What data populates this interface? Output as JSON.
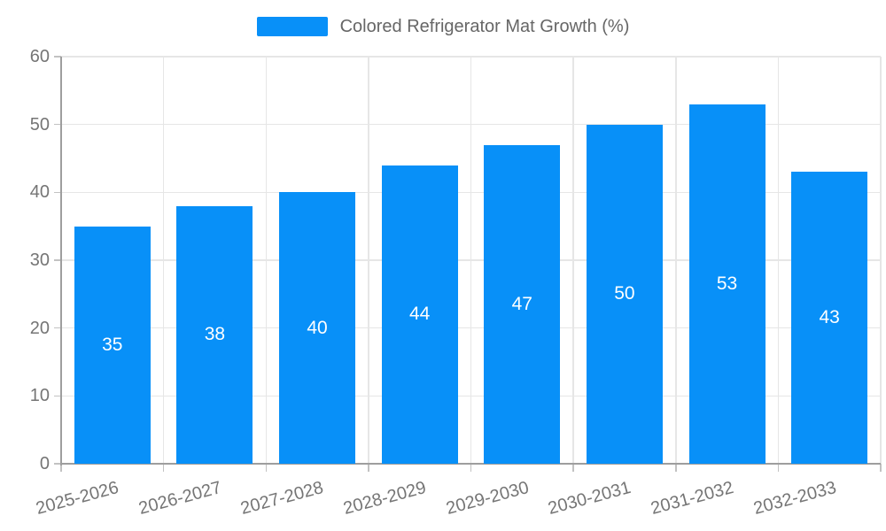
{
  "legend": {
    "label": "Colored Refrigerator Mat Growth (%)"
  },
  "colors": {
    "bar": "#0890F8",
    "grid": "#E6E6E6",
    "axis": "#9E9E9E",
    "tick_mark": "#C2C2C2",
    "tick_text": "#757575",
    "legend_text": "#666666",
    "value_label": "#FFFFFF",
    "background": "#FFFFFF"
  },
  "chart_data": {
    "type": "bar",
    "title": "Colored Refrigerator Mat Growth (%)",
    "categories": [
      "2025-2026",
      "2026-2027",
      "2027-2028",
      "2028-2029",
      "2029-2030",
      "2030-2031",
      "2031-2032",
      "2032-2033"
    ],
    "values": [
      35,
      38,
      40,
      44,
      47,
      50,
      53,
      43
    ],
    "series_name": "Colored Refrigerator Mat Growth (%)",
    "xlabel": "",
    "ylabel": "",
    "ylim": [
      0,
      60
    ],
    "yticks": [
      0,
      10,
      20,
      30,
      40,
      50,
      60
    ],
    "grid": true,
    "legend_position": "top-center",
    "value_label_position": "inside-middle",
    "x_label_rotation_deg": -15
  }
}
